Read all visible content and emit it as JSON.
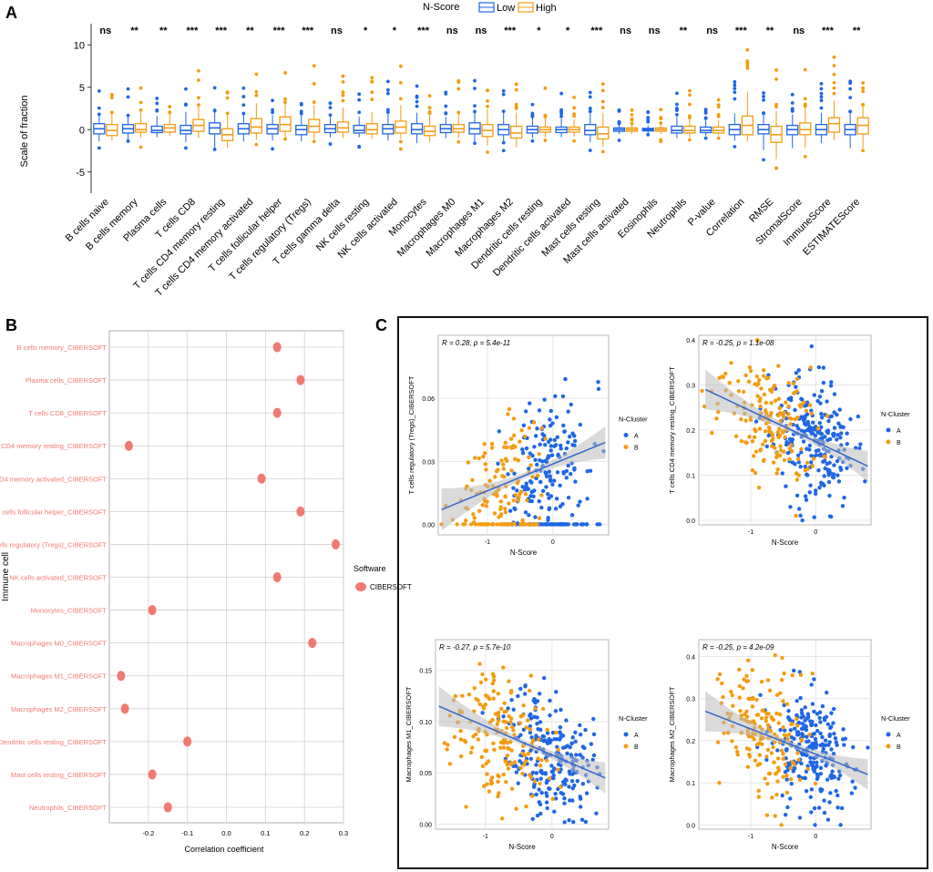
{
  "panel_labels": {
    "a": "A",
    "b": "B",
    "c": "C"
  },
  "colors": {
    "low": "#1f66e5",
    "high": "#f39c12",
    "cluster_a": "#1f66e5",
    "cluster_b": "#f39c12",
    "corr_dot": "#f07a72",
    "corr_label": "#f07a72",
    "fit_line": "#3366cc",
    "ci_band": "#bbbbbb"
  },
  "chart_data": [
    {
      "id": "A",
      "type": "box",
      "title": "",
      "legend_title": "N-Score",
      "legend": [
        "Low",
        "High"
      ],
      "ylabel": "Scale of fraction",
      "xlabel": "",
      "ylim": [
        -7.5,
        12.5
      ],
      "yticks": [
        -5,
        0,
        5,
        10
      ],
      "categories": [
        "B cells naive",
        "B cells memory",
        "Plasma cells",
        "T cells CD8",
        "T cells CD4 memory resting",
        "T cells CD4 memory activated",
        "T cells follicular helper",
        "T cells regulatory (Tregs)",
        "T cells gamma delta",
        "NK cells resting",
        "NK cells activated",
        "Monocytes",
        "Macrophages M0",
        "Macrophages M1",
        "Macrophages M2",
        "Dendritic cells resting",
        "Dendritic cells activated",
        "Mast cells resting",
        "Mast cells activated",
        "Eosinophils",
        "Neutrophils",
        "P-value",
        "Correlation",
        "RMSE",
        "StromalScore",
        "ImmuneScore",
        "ESTIMATEScore"
      ],
      "significance": [
        "ns",
        "**",
        "**",
        "***",
        "***",
        "**",
        "***",
        "***",
        "ns",
        "*",
        "*",
        "***",
        "ns",
        "ns",
        "***",
        "*",
        "*",
        "***",
        "ns",
        "ns",
        "**",
        "ns",
        "***",
        "**",
        "ns",
        "***",
        "**"
      ],
      "series": [
        {
          "name": "Low",
          "boxes": [
            [
              -1.4,
              -0.5,
              0.1,
              0.7,
              1.8
            ],
            [
              -1.3,
              -0.4,
              0.1,
              0.6,
              1.6
            ],
            [
              -0.9,
              -0.35,
              -0.1,
              0.4,
              1.6
            ],
            [
              -1.5,
              -0.5,
              -0.1,
              0.5,
              2.1
            ],
            [
              -2.2,
              -0.5,
              0.2,
              0.8,
              2.2
            ],
            [
              -1.4,
              -0.5,
              0.1,
              0.7,
              1.9
            ],
            [
              -1.3,
              -0.5,
              0.1,
              0.6,
              1.7
            ],
            [
              -1.4,
              -0.6,
              0.0,
              0.5,
              1.9
            ],
            [
              -0.9,
              -0.35,
              0.1,
              0.6,
              1.5
            ],
            [
              -0.9,
              -0.4,
              -0.1,
              0.5,
              1.5
            ],
            [
              -1.3,
              -0.5,
              0.1,
              0.6,
              1.9
            ],
            [
              -1.6,
              -0.5,
              0.0,
              0.7,
              2.0
            ],
            [
              -1.0,
              -0.35,
              0.1,
              0.6,
              1.5
            ],
            [
              -1.6,
              -0.5,
              0.1,
              0.8,
              2.1
            ],
            [
              -1.5,
              -0.6,
              0.0,
              0.6,
              2.1
            ],
            [
              -1.0,
              -0.4,
              0.0,
              0.4,
              1.5
            ],
            [
              -0.9,
              -0.35,
              0.0,
              0.3,
              1.3
            ],
            [
              -1.5,
              -0.6,
              -0.1,
              0.6,
              2.0
            ],
            [
              -0.5,
              -0.2,
              0.0,
              0.2,
              0.6
            ],
            [
              -0.4,
              -0.15,
              0.0,
              0.15,
              0.5
            ],
            [
              -1.0,
              -0.4,
              -0.1,
              0.4,
              1.5
            ],
            [
              -0.7,
              -0.35,
              -0.1,
              0.3,
              1.1
            ],
            [
              -1.3,
              -0.6,
              0.0,
              0.6,
              1.9
            ],
            [
              -2.4,
              -0.5,
              0.0,
              0.6,
              1.9
            ],
            [
              -2.2,
              -0.6,
              0.0,
              0.5,
              1.8
            ],
            [
              -1.6,
              -0.6,
              0.0,
              0.6,
              2.0
            ],
            [
              -2.2,
              -0.6,
              0.0,
              0.6,
              2.1
            ]
          ]
        },
        {
          "name": "High",
          "boxes": [
            [
              -1.3,
              -0.7,
              -0.1,
              0.6,
              2.0
            ],
            [
              -1.0,
              -0.3,
              0.0,
              0.7,
              2.3
            ],
            [
              -0.7,
              -0.3,
              0.2,
              0.6,
              1.9
            ],
            [
              -1.0,
              -0.2,
              0.5,
              1.2,
              2.9
            ],
            [
              -2.2,
              -1.3,
              -0.6,
              0.1,
              1.8
            ],
            [
              -1.2,
              -0.4,
              0.3,
              1.3,
              3.1
            ],
            [
              -1.1,
              -0.2,
              0.6,
              1.5,
              3.2
            ],
            [
              -1.1,
              -0.3,
              0.4,
              1.2,
              2.9
            ],
            [
              -1.0,
              -0.3,
              0.2,
              0.9,
              2.6
            ],
            [
              -1.1,
              -0.5,
              0.0,
              0.7,
              2.1
            ],
            [
              -1.1,
              -0.4,
              0.3,
              1.0,
              2.9
            ],
            [
              -1.5,
              -0.7,
              -0.2,
              0.4,
              1.9
            ],
            [
              -1.0,
              -0.3,
              0.1,
              0.6,
              1.9
            ],
            [
              -1.9,
              -0.8,
              -0.1,
              0.6,
              2.4
            ],
            [
              -2.1,
              -1.0,
              -0.4,
              0.4,
              2.0
            ],
            [
              -0.9,
              -0.3,
              0.0,
              0.3,
              1.5
            ],
            [
              -0.8,
              -0.3,
              0.0,
              0.3,
              1.2
            ],
            [
              -2.0,
              -1.1,
              -0.5,
              0.3,
              2.0
            ],
            [
              -0.5,
              -0.2,
              0.0,
              0.2,
              0.6
            ],
            [
              -0.5,
              -0.2,
              0.0,
              0.2,
              0.6
            ],
            [
              -0.9,
              -0.4,
              -0.1,
              0.4,
              1.4
            ],
            [
              -0.7,
              -0.4,
              -0.1,
              0.3,
              1.1
            ],
            [
              -1.4,
              -0.6,
              0.5,
              1.6,
              4.5
            ],
            [
              -3.5,
              -1.5,
              -0.6,
              0.4,
              2.2
            ],
            [
              -2.1,
              -0.6,
              0.0,
              0.8,
              2.7
            ],
            [
              -1.2,
              -0.3,
              0.7,
              1.4,
              3.4
            ],
            [
              -2.2,
              -0.5,
              0.5,
              1.4,
              2.9
            ]
          ]
        }
      ]
    },
    {
      "id": "B",
      "type": "scatter",
      "title": "",
      "xlabel": "Correlation coefficient",
      "ylabel": "Immune cell",
      "legend_title": "Software",
      "legend": [
        "CIBERSOFT"
      ],
      "xlim": [
        -0.3,
        0.3
      ],
      "xticks": [
        -0.2,
        -0.1,
        0.0,
        0.1,
        0.2,
        0.3
      ],
      "xtick_labels": [
        "-0.2",
        "-0.1",
        "0.0",
        "0.1",
        "0.2",
        "0.3"
      ],
      "categories": [
        "B cells memory_CIBERSOFT",
        "Plasma cells_CIBERSOFT",
        "T cells CD8_CIBERSOFT",
        "T cells CD4 memory resting_CIBERSOFT",
        "T cells CD4 memory activated_CIBERSOFT",
        "T cells follicular helper_CIBERSOFT",
        "T cells regulatory (Tregs)_CIBERSOFT",
        "NK cells activated_CIBERSOFT",
        "Monocytes_CIBERSOFT",
        "Macrophages M0_CIBERSOFT",
        "Macrophages M1_CIBERSOFT",
        "Macrophages M2_CIBERSOFT",
        "Dendritic cells resting_CIBERSOFT",
        "Mast cells resting_CIBERSOFT",
        "Neutrophils_CIBERSOFT"
      ],
      "values": [
        0.13,
        0.19,
        0.13,
        -0.25,
        0.09,
        0.19,
        0.28,
        0.13,
        -0.19,
        0.22,
        -0.27,
        -0.26,
        -0.1,
        -0.19,
        -0.15
      ]
    },
    {
      "id": "C1",
      "type": "scatter",
      "stat": "R = 0.28, p = 5.4e-11",
      "xlabel": "N-Score",
      "ylabel": "T cells regulatory (Tregs)_CIBERSOFT",
      "legend_title": "N-Cluster",
      "legend": [
        "A",
        "B"
      ],
      "xlim": [
        -1.75,
        0.85
      ],
      "ylim": [
        -0.005,
        0.09
      ],
      "xticks": [
        -1,
        0
      ],
      "yticks": [
        0,
        0.03,
        0.06
      ],
      "ytick_labels": [
        "0.00",
        "0.03",
        "0.06"
      ],
      "fit": {
        "x": [
          -1.7,
          0.8
        ],
        "y": [
          0.007,
          0.039
        ]
      },
      "y_floor": 0.0,
      "y_cap": 0.085,
      "seed": 11,
      "n_a": 230,
      "n_b": 160
    },
    {
      "id": "C2",
      "type": "scatter",
      "stat": "R = -0.25, p = 1.1e-08",
      "xlabel": "N-Score",
      "ylabel": "T cells CD4 memory resting_CIBERSOFT",
      "legend_title": "N-Cluster",
      "legend": [
        "A",
        "B"
      ],
      "xlim": [
        -1.8,
        0.85
      ],
      "ylim": [
        -0.01,
        0.41
      ],
      "xticks": [
        -1,
        0
      ],
      "yticks": [
        0,
        0.1,
        0.2,
        0.3,
        0.4
      ],
      "ytick_labels": [
        "0.0",
        "0.1",
        "0.2",
        "0.3",
        "0.4"
      ],
      "fit": {
        "x": [
          -1.7,
          0.8
        ],
        "y": [
          0.29,
          0.12
        ]
      },
      "y_floor": 0.0,
      "y_cap": 0.4,
      "seed": 23,
      "n_a": 240,
      "n_b": 170
    },
    {
      "id": "C3",
      "type": "scatter",
      "stat": "R = -0.27, p = 5.7e-10",
      "xlabel": "N-Score",
      "ylabel": "Macrophages M1_CIBERSOFT",
      "legend_title": "N-Cluster",
      "legend": [
        "A",
        "B"
      ],
      "xlim": [
        -1.75,
        0.85
      ],
      "ylim": [
        -0.005,
        0.18
      ],
      "xticks": [
        -1,
        0
      ],
      "yticks": [
        0,
        0.05,
        0.1,
        0.15
      ],
      "ytick_labels": [
        "0.00",
        "0.05",
        "0.10",
        "0.15"
      ],
      "fit": {
        "x": [
          -1.7,
          0.8
        ],
        "y": [
          0.115,
          0.045
        ]
      },
      "y_floor": 0.0,
      "y_cap": 0.175,
      "seed": 37,
      "n_a": 240,
      "n_b": 170
    },
    {
      "id": "C4",
      "type": "scatter",
      "stat": "R = -0.25, p = 4.2e-09",
      "xlabel": "N-Score",
      "ylabel": "Macrophages M2_CIBERSOFT",
      "legend_title": "N-Cluster",
      "legend": [
        "A",
        "B"
      ],
      "xlim": [
        -1.8,
        0.85
      ],
      "ylim": [
        -0.01,
        0.44
      ],
      "xticks": [
        -1,
        0
      ],
      "yticks": [
        0,
        0.1,
        0.2,
        0.3,
        0.4
      ],
      "ytick_labels": [
        "0.0",
        "0.1",
        "0.2",
        "0.3",
        "0.4"
      ],
      "fit": {
        "x": [
          -1.7,
          0.8
        ],
        "y": [
          0.27,
          0.12
        ]
      },
      "y_floor": 0.0,
      "y_cap": 0.43,
      "seed": 53,
      "n_a": 240,
      "n_b": 170
    }
  ]
}
